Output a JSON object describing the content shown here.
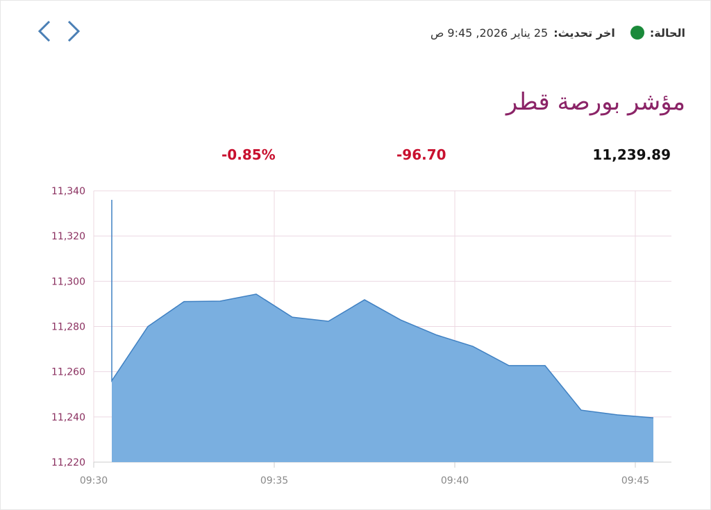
{
  "header": {
    "status_label": "الحالة:",
    "update_label": "اخر تحديث:",
    "update_time": "25 يناير 2026, 9:45 ص"
  },
  "title": "مؤشر بورصة قطر",
  "quote": {
    "last": "11,239.89",
    "change": "-96.70",
    "change_percent": "-0.85%"
  },
  "chart_data": {
    "type": "area",
    "x": [
      570.5,
      570.5,
      571.5,
      572.5,
      573.5,
      574.5,
      575.5,
      576.5,
      577.5,
      578.5,
      579.5,
      580.5,
      581.5,
      582.5,
      583.5,
      584.5,
      585.5
    ],
    "values": [
      11336,
      11256,
      11280,
      11291,
      11291.2,
      11294.3,
      11284.1,
      11282.3,
      11291.8,
      11282.9,
      11276.2,
      11271.2,
      11262.7,
      11262.7,
      11243,
      11240.9,
      11239.6
    ],
    "color": "#7aafe0",
    "line_color": "#3f80c2",
    "xlim": [
      570,
      586
    ],
    "xticks": [
      {
        "value": 570,
        "label": "09:30"
      },
      {
        "value": 575,
        "label": "09:35"
      },
      {
        "value": 580,
        "label": "09:40"
      },
      {
        "value": 585,
        "label": "09:45"
      }
    ],
    "ylim": [
      11220,
      11340
    ],
    "yticks": [
      {
        "value": 11220,
        "label": "11,220"
      },
      {
        "value": 11240,
        "label": "11,240"
      },
      {
        "value": 11260,
        "label": "11,260"
      },
      {
        "value": 11280,
        "label": "11,280"
      },
      {
        "value": 11300,
        "label": "11,300"
      },
      {
        "value": 11320,
        "label": "11,320"
      },
      {
        "value": 11340,
        "label": "11,340"
      }
    ],
    "grid": true
  }
}
